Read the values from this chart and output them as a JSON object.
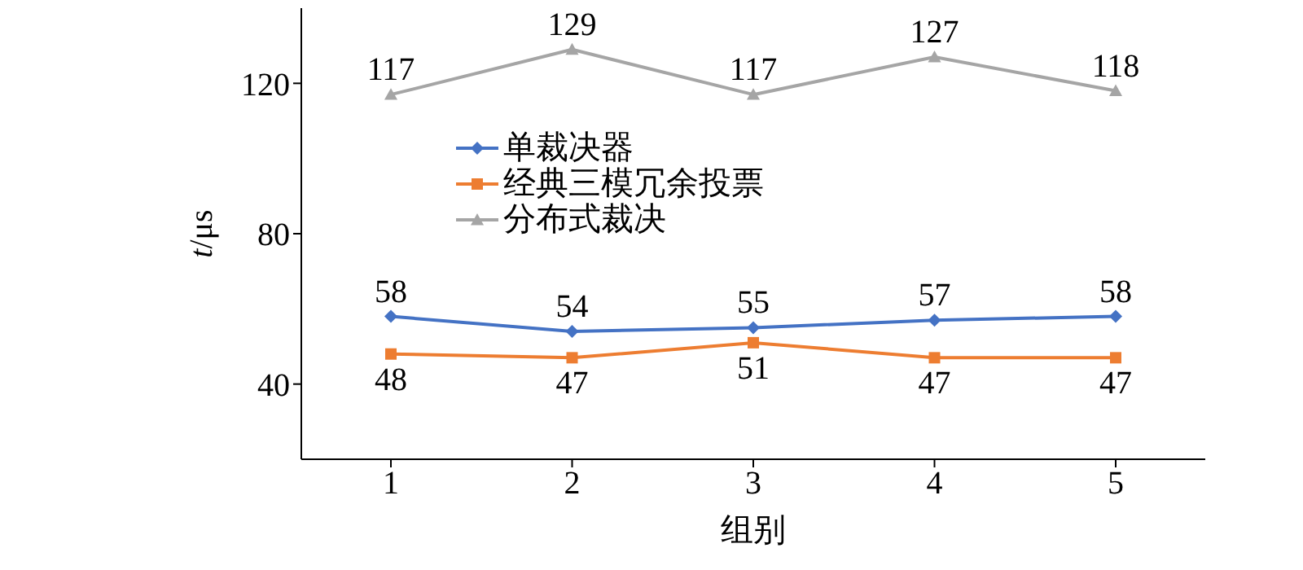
{
  "chart_data": {
    "type": "line",
    "xlabel": "组别",
    "ylabel": "t/μs",
    "categories": [
      "1",
      "2",
      "3",
      "4",
      "5"
    ],
    "series": [
      {
        "name": "单裁决器",
        "color": "#4472c4",
        "marker": "diamond",
        "values": [
          58,
          54,
          55,
          57,
          58
        ]
      },
      {
        "name": "经典三模冗余投票",
        "color": "#ed7d31",
        "marker": "square",
        "values": [
          48,
          47,
          51,
          47,
          47
        ]
      },
      {
        "name": "分布式裁决",
        "color": "#a5a5a5",
        "marker": "triangle",
        "values": [
          117,
          129,
          117,
          127,
          118
        ]
      }
    ],
    "ylim": [
      20,
      140
    ],
    "yticks": [
      40,
      80,
      120
    ],
    "data_labels": true,
    "grid": false,
    "legend": "center",
    "line_style": "solid"
  }
}
